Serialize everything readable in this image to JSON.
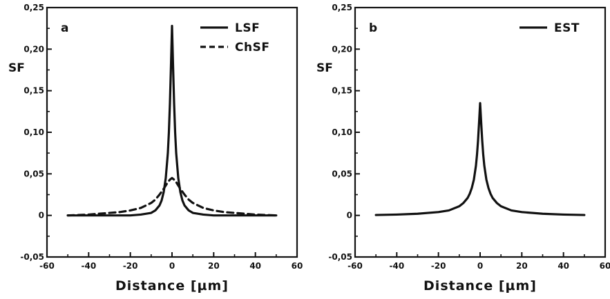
{
  "chart_data": [
    {
      "type": "line",
      "panel_label": "a",
      "xlabel": "Distance [µm]",
      "ylabel": "SF",
      "xlim": [
        -60,
        60
      ],
      "ylim": [
        -0.05,
        0.25
      ],
      "x_ticks": [
        -60,
        -40,
        -20,
        0,
        20,
        40,
        60
      ],
      "x_tick_labels": [
        "-60",
        "-40",
        "-20",
        "0",
        "20",
        "40",
        "60"
      ],
      "y_ticks": [
        -0.05,
        0,
        0.05,
        0.1,
        0.15,
        0.2,
        0.25
      ],
      "y_tick_labels": [
        "-0,05",
        "0",
        "0,05",
        "0,10",
        "0,15",
        "0,20",
        "0,25"
      ],
      "grid": false,
      "legend_position": "top-right",
      "series": [
        {
          "name": "LSF",
          "line_style": "solid",
          "color": "#111111",
          "x": [
            -50,
            -40,
            -30,
            -20,
            -15,
            -10,
            -8,
            -6,
            -5,
            -4,
            -3,
            -2,
            -1.5,
            -1,
            -0.5,
            0,
            0.5,
            1,
            1.5,
            2,
            3,
            4,
            5,
            6,
            8,
            10,
            15,
            20,
            30,
            40,
            50
          ],
          "y": [
            0,
            0,
            0,
            0,
            0.001,
            0.003,
            0.006,
            0.012,
            0.018,
            0.028,
            0.045,
            0.075,
            0.1,
            0.135,
            0.18,
            0.228,
            0.18,
            0.135,
            0.1,
            0.075,
            0.045,
            0.028,
            0.018,
            0.012,
            0.006,
            0.003,
            0.001,
            0,
            0,
            0,
            0
          ]
        },
        {
          "name": "ChSF",
          "line_style": "dashed",
          "color": "#111111",
          "x": [
            -50,
            -40,
            -30,
            -25,
            -20,
            -15,
            -10,
            -8,
            -6,
            -4,
            -2,
            -1,
            0,
            1,
            2,
            4,
            6,
            8,
            10,
            15,
            20,
            25,
            30,
            40,
            50
          ],
          "y": [
            0,
            0.001,
            0.003,
            0.004,
            0.006,
            0.009,
            0.015,
            0.019,
            0.025,
            0.032,
            0.04,
            0.043,
            0.045,
            0.043,
            0.04,
            0.032,
            0.025,
            0.019,
            0.015,
            0.009,
            0.006,
            0.004,
            0.003,
            0.001,
            0
          ]
        }
      ]
    },
    {
      "type": "line",
      "panel_label": "b",
      "xlabel": "Distance [µm]",
      "ylabel": "SF",
      "xlim": [
        -60,
        60
      ],
      "ylim": [
        -0.05,
        0.25
      ],
      "x_ticks": [
        -60,
        -40,
        -20,
        0,
        20,
        40,
        60
      ],
      "x_tick_labels": [
        "-60",
        "-40",
        "-20",
        "0",
        "20",
        "40",
        "60"
      ],
      "y_ticks": [
        -0.05,
        0,
        0.05,
        0.1,
        0.15,
        0.2,
        0.25
      ],
      "y_tick_labels": [
        "-0,05",
        "0",
        "0,05",
        "0,10",
        "0,15",
        "0,20",
        "0,25"
      ],
      "grid": false,
      "legend_position": "top-right",
      "series": [
        {
          "name": "EST",
          "line_style": "solid",
          "color": "#111111",
          "x": [
            -50,
            -40,
            -30,
            -20,
            -15,
            -10,
            -8,
            -6,
            -5,
            -4,
            -3,
            -2,
            -1.5,
            -1,
            -0.5,
            0,
            0.5,
            1,
            1.5,
            2,
            3,
            4,
            5,
            6,
            8,
            10,
            15,
            20,
            30,
            40,
            50
          ],
          "y": [
            0.0005,
            0.001,
            0.002,
            0.004,
            0.006,
            0.011,
            0.015,
            0.021,
            0.026,
            0.033,
            0.043,
            0.06,
            0.073,
            0.09,
            0.112,
            0.135,
            0.112,
            0.09,
            0.073,
            0.06,
            0.043,
            0.033,
            0.026,
            0.021,
            0.015,
            0.011,
            0.006,
            0.004,
            0.002,
            0.001,
            0.0005
          ]
        }
      ]
    }
  ]
}
